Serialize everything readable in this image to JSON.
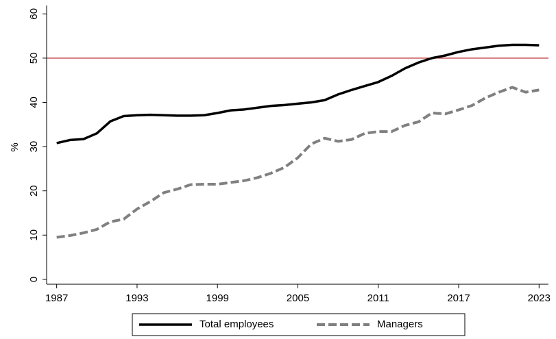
{
  "chart_data": {
    "type": "line",
    "ylabel": "%",
    "x": [
      1987,
      1988,
      1989,
      1990,
      1991,
      1992,
      1993,
      1994,
      1995,
      1996,
      1997,
      1998,
      1999,
      2000,
      2001,
      2002,
      2003,
      2004,
      2005,
      2006,
      2007,
      2008,
      2009,
      2010,
      2011,
      2012,
      2013,
      2014,
      2015,
      2016,
      2017,
      2018,
      2019,
      2020,
      2021,
      2022,
      2023
    ],
    "series": [
      {
        "name": "Total employees",
        "color": "#000000",
        "dash": "solid",
        "values": [
          30.8,
          31.5,
          31.7,
          33.0,
          35.7,
          36.9,
          37.1,
          37.2,
          37.1,
          37.0,
          37.0,
          37.1,
          37.6,
          38.2,
          38.4,
          38.8,
          39.2,
          39.4,
          39.7,
          40.0,
          40.5,
          41.8,
          42.8,
          43.7,
          44.6,
          46.0,
          47.7,
          49.0,
          50.0,
          50.6,
          51.4,
          52.0,
          52.4,
          52.8,
          53.0,
          53.0,
          52.9
        ]
      },
      {
        "name": "Managers",
        "color": "#808080",
        "dash": "dashed",
        "values": [
          9.5,
          9.9,
          10.5,
          11.3,
          13.0,
          13.6,
          15.9,
          17.6,
          19.6,
          20.4,
          21.4,
          21.5,
          21.5,
          21.9,
          22.3,
          23.0,
          24.0,
          25.3,
          27.5,
          30.6,
          31.9,
          31.2,
          31.6,
          33.0,
          33.4,
          33.4,
          34.8,
          35.6,
          37.6,
          37.4,
          38.3,
          39.3,
          41.0,
          42.3,
          43.4,
          42.3,
          42.8
        ]
      }
    ],
    "reference_line": {
      "value": 50,
      "color": "#b22222"
    },
    "xlim": [
      1986.25,
      2023.7
    ],
    "xticks": [
      1987,
      1993,
      1999,
      2005,
      2011,
      2017,
      2023
    ],
    "ylim": [
      -1.1,
      61.9
    ],
    "yticks": [
      0,
      10,
      20,
      30,
      40,
      50,
      60
    ],
    "grid": false,
    "legend": "bottom"
  }
}
